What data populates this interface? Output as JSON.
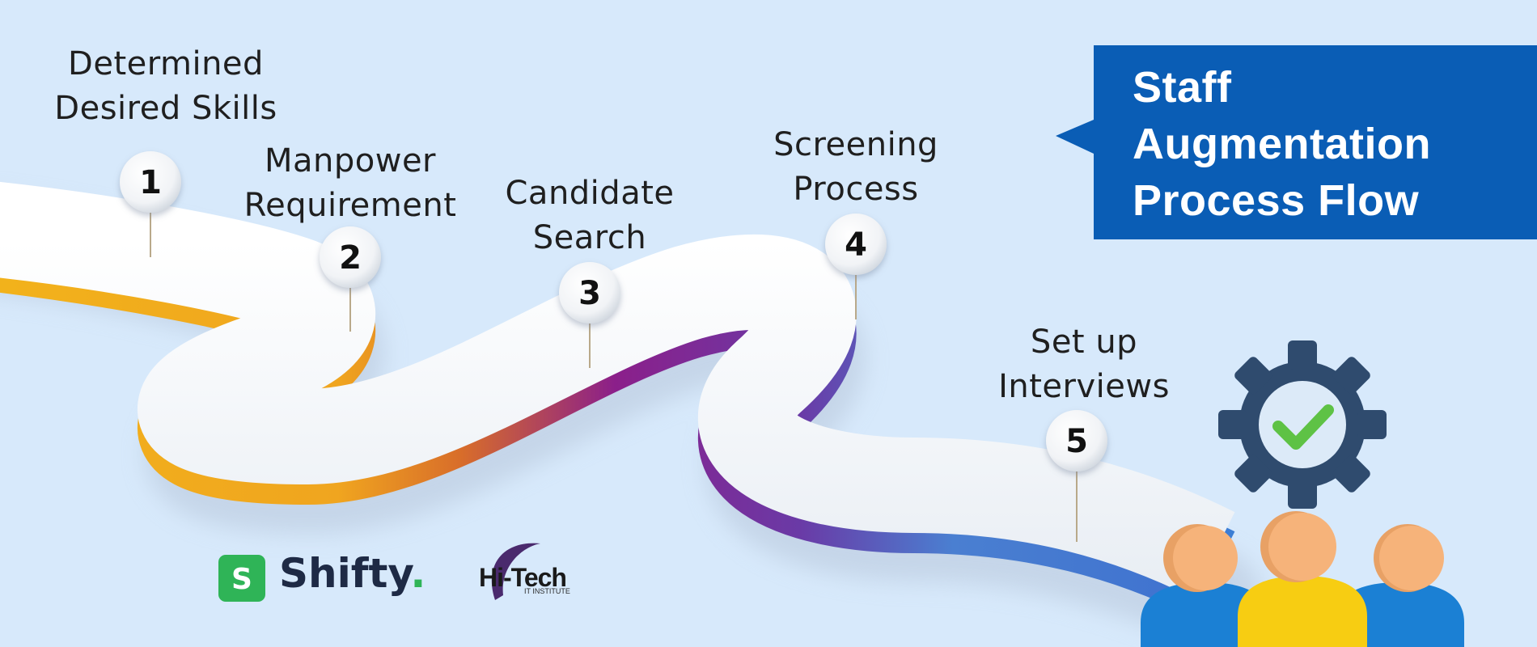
{
  "title": {
    "lines": [
      "Staff",
      "Augmentation",
      "Process Flow"
    ]
  },
  "steps": [
    {
      "number": "1",
      "label_lines": [
        "Determined",
        "Desired Skills"
      ]
    },
    {
      "number": "2",
      "label_lines": [
        "Manpower",
        "Requirement"
      ]
    },
    {
      "number": "3",
      "label_lines": [
        "Candidate",
        "Search"
      ]
    },
    {
      "number": "4",
      "label_lines": [
        "Screening",
        "Process"
      ]
    },
    {
      "number": "5",
      "label_lines": [
        "Set up",
        "Interviews"
      ]
    }
  ],
  "brands": {
    "shifty": {
      "glyph": "S",
      "name": "Shifty",
      "dot": "."
    },
    "hitech": {
      "name": "Hi-Tech",
      "subtitle": "IT INSTITUTE"
    }
  },
  "icons": {
    "gear": "gear-checkmark-icon",
    "team": "people-group-icon"
  },
  "colors": {
    "background": "#d7e9fb",
    "title_box": "#0a5db5",
    "road_top": "#ffffff",
    "road_side_start": "#f2b21b",
    "road_side_mid": "#8b1f8a",
    "road_side_end": "#2fc3f1",
    "gear": "#2f4b6e",
    "check": "#5ec245"
  }
}
